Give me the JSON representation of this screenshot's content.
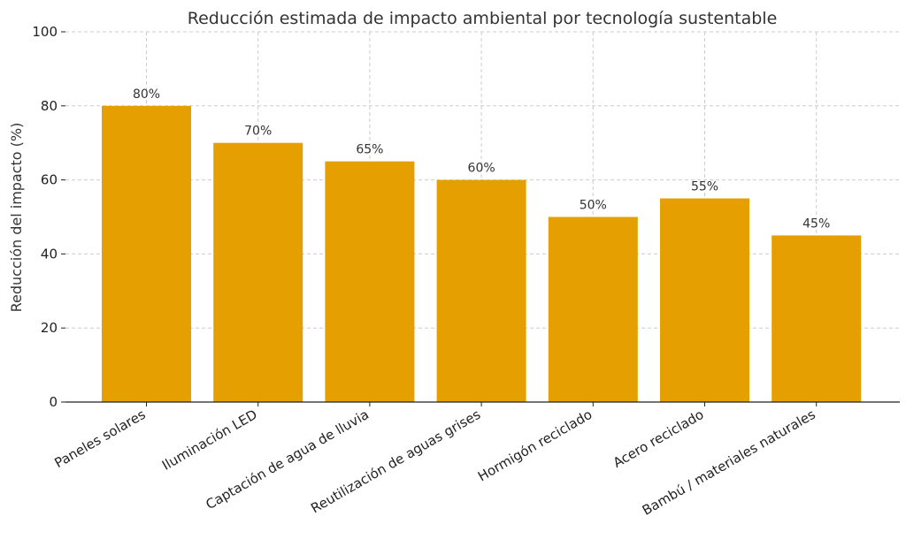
{
  "chart_data": {
    "type": "bar",
    "title": "Reducción estimada de impacto ambiental por tecnología sustentable",
    "xlabel": "",
    "ylabel": "Reducción del impacto (%)",
    "ylim": [
      0,
      100
    ],
    "yticks": [
      "0",
      "20",
      "40",
      "60",
      "80",
      "100"
    ],
    "categories": [
      "Paneles solares",
      "Iluminación LED",
      "Captación de agua de lluvia",
      "Reutilización de aguas grises",
      "Hormigón reciclado",
      "Acero reciclado",
      "Bambú / materiales naturales"
    ],
    "values": [
      80,
      70,
      65,
      60,
      50,
      55,
      45
    ],
    "data_labels": [
      "80%",
      "70%",
      "65%",
      "60%",
      "50%",
      "55%",
      "45%"
    ],
    "bar_color": "#E69F00",
    "grid": true,
    "legend": "none"
  }
}
